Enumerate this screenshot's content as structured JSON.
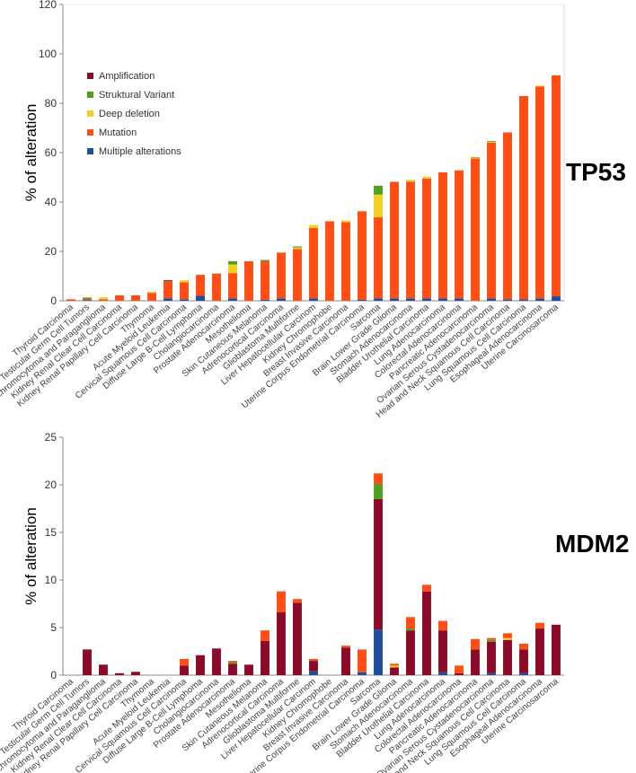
{
  "chart_data": [
    {
      "type": "bar",
      "stacked": true,
      "gene_label": "TP53",
      "ylabel": "% of alteration",
      "xlabel": "",
      "ylim": [
        0,
        120
      ],
      "yticks": [
        0,
        20,
        40,
        60,
        80,
        100,
        120
      ],
      "grid": false,
      "legend": "top-left",
      "categories": [
        "Thyroid Carcinoma",
        "Testicular Germ Cell Tumors",
        "Pheochromocytoma and Paraganglioma",
        "Kidney Renal Clear Cell Carcinoma",
        "Kidney Renal Papillary Cell Carcinoma",
        "Thymoma",
        "Acute Myeloid Leukemia",
        "Cervical Squamous Cell Carcinoma",
        "Diffuse Large B-Cell Lymphoma",
        "Cholangiocarcinoma",
        "Prostate Adenocarcinoma",
        "Mesothelioma",
        "Skin Cutaneous Melanoma",
        "Adrenocortical Carcinoma",
        "Glioblastoma Multiforme",
        "Liver Hepatocellular Carcinom",
        "Kidney Chromophobe",
        "Breast Invasive Carcinoma",
        "Uterine Corpus Endometrial Carcinoma",
        "Sarcoma",
        "Brain Lower Grade Glioma",
        "Stomach Adenocarcinoma",
        "Bladder Urothelial Carcinoma",
        "Lung Adenocarcinoma",
        "Colorectal Adenocarcinoma",
        "Pancreatic Adenocarcinoma",
        "Ovarian Serous Cystadenocarcinoma",
        "Head and Neck Squamous Cell Carcinoma",
        "Lung Squamous Cell Carcinoma",
        "Esophageal Adenocarcinoma",
        "Uterine Carcinosarcoma"
      ],
      "series": [
        {
          "name": "Multiple alterations",
          "color": "#1f4e9c",
          "values": [
            0,
            0.3,
            0,
            0,
            0,
            0,
            1,
            0.6,
            2,
            0,
            1,
            0,
            0.4,
            1,
            0,
            1,
            0,
            0,
            0.4,
            1,
            1,
            1,
            1,
            1,
            1,
            0,
            1,
            0.6,
            0.6,
            1,
            1.8
          ]
        },
        {
          "name": "Mutation",
          "color": "#ff4d14",
          "values": [
            0.6,
            0.6,
            0.6,
            2.2,
            2.2,
            3.2,
            6.8,
            6.9,
            8.5,
            11,
            10.2,
            16,
            15.6,
            18.5,
            21,
            28.5,
            32.2,
            31.8,
            35.8,
            32.8,
            47.2,
            47.2,
            48.5,
            51,
            51.8,
            57.6,
            63,
            67.6,
            82.3,
            85.8,
            89.5
          ]
        },
        {
          "name": "Deep deletion",
          "color": "#f5d020",
          "values": [
            0,
            0,
            0.8,
            0,
            0,
            0.4,
            0,
            0.8,
            0,
            0,
            3.5,
            0,
            0,
            0,
            0.6,
            1.2,
            0,
            0.7,
            0.2,
            9.2,
            0,
            0.8,
            0.8,
            0,
            0,
            0.4,
            0.4,
            0,
            0,
            0.4,
            0
          ]
        },
        {
          "name": "Struktural Variant",
          "color": "#4fa01e",
          "values": [
            0,
            0.4,
            0,
            0,
            0,
            0,
            0.3,
            0,
            0,
            0,
            1.3,
            0,
            0.5,
            0,
            0.4,
            0,
            0,
            0,
            0,
            3.6,
            0,
            0,
            0,
            0,
            0,
            0.2,
            0.3,
            0,
            0,
            0,
            0
          ]
        },
        {
          "name": "Amplification",
          "color": "#8b0a28",
          "values": [
            0,
            0,
            0,
            0,
            0,
            0,
            0.3,
            0,
            0,
            0,
            0,
            0,
            0,
            0,
            0,
            0,
            0,
            0,
            0,
            0,
            0,
            0,
            0,
            0,
            0,
            0,
            0,
            0,
            0,
            0,
            0
          ]
        }
      ]
    },
    {
      "type": "bar",
      "stacked": true,
      "gene_label": "MDM2",
      "ylabel": "% of alteration",
      "xlabel": "",
      "ylim": [
        0,
        25
      ],
      "yticks": [
        0,
        5,
        10,
        15,
        20,
        25
      ],
      "grid": false,
      "legend": "none",
      "categories": [
        "Thyroid Carcinoma",
        "Testicular Germ Cell Tumors",
        "Pheochromocytoma and Paraganglioma",
        "Kidney Renal Clear Cell Carcinoma",
        "Kidney Renal Papillary Cell Carcinoma",
        "Thymoma",
        "Acute Myeloid Leukemia",
        "Cervical Squamous Cell Carcinoma",
        "Diffuse Large B-Cell Lymphoma",
        "Cholangiocarcinoma",
        "Prostate Adenocarcinoma",
        "Mesothelioma",
        "Skin Cutaneous Melanoma",
        "Adrenocortical Carcinoma",
        "Glioblastoma Multiforme",
        "Liver Hepatocellular Carcinom",
        "Kidney Chromophobe",
        "Breast Invasive Carcinoma",
        "Uterine Corpus Endometrial Carcinoma",
        "Sarcoma",
        "Brain Lower Grade Glioma",
        "Stomach Adenocarcinoma",
        "Bladder Urothelial Carcinoma",
        "Lung Adenocarcinoma",
        "Colorectal Adenocarcinoma",
        "Pancreatic Adenocarcinoma",
        "Ovarian Serous Cystadenocarcinoma",
        "Head and Neck Squamous Cell Carcinoma",
        "Lung Squamous Cell Carcinoma",
        "Esophageal Adenocarcinoma",
        "Uterine Carcinosarcoma"
      ],
      "series": [
        {
          "name": "Multiple alterations",
          "color": "#1f4e9c",
          "values": [
            0,
            0,
            0,
            0,
            0,
            0,
            0,
            0,
            0,
            0,
            0,
            0,
            0,
            0,
            0,
            0.4,
            0,
            0,
            0.3,
            4.8,
            0,
            0,
            0,
            0.3,
            0,
            0,
            0.2,
            0,
            0.2,
            0,
            0
          ]
        },
        {
          "name": "Amplification",
          "color": "#8b0a28",
          "values": [
            0,
            2.7,
            1.1,
            0.2,
            0.35,
            0,
            0,
            1,
            2.1,
            2.8,
            1.2,
            1.1,
            3.6,
            6.6,
            7.6,
            1.1,
            0,
            2.9,
            0,
            13.7,
            0.8,
            4.7,
            8.8,
            4.4,
            0.2,
            2.7,
            3.3,
            3.7,
            2.5,
            4.9,
            5.3
          ]
        },
        {
          "name": "Struktural Variant",
          "color": "#4fa01e",
          "values": [
            0,
            0,
            0,
            0,
            0,
            0,
            0,
            0,
            0,
            0,
            0.2,
            0,
            0,
            0,
            0,
            0,
            0,
            0,
            0,
            1.6,
            0,
            0.2,
            0,
            0,
            0,
            0,
            0.2,
            0,
            0,
            0,
            0
          ]
        },
        {
          "name": "Deep deletion",
          "color": "#f5d020",
          "values": [
            0,
            0,
            0,
            0,
            0,
            0,
            0,
            0,
            0,
            0,
            0,
            0,
            0,
            0,
            0,
            0,
            0,
            0,
            0,
            0,
            0.2,
            0,
            0,
            0,
            0,
            0,
            0,
            0.2,
            0,
            0,
            0
          ]
        },
        {
          "name": "Mutation",
          "color": "#ff4d14",
          "values": [
            0,
            0,
            0,
            0,
            0,
            0,
            0,
            0.7,
            0,
            0,
            0.1,
            0,
            1.1,
            2.2,
            0.4,
            0.2,
            0,
            0.2,
            2.4,
            1.1,
            0.2,
            1.2,
            0.7,
            1,
            0.8,
            1.1,
            0.2,
            0.5,
            0.6,
            0.6,
            0
          ]
        }
      ]
    }
  ],
  "legend_items": [
    {
      "label": "Amplification",
      "color": "#8b0a28"
    },
    {
      "label": "Struktural Variant",
      "color": "#4fa01e"
    },
    {
      "label": "Deep deletion",
      "color": "#f5d020"
    },
    {
      "label": "Mutation",
      "color": "#ff4d14"
    },
    {
      "label": "Multiple alterations",
      "color": "#1f4e9c"
    }
  ]
}
